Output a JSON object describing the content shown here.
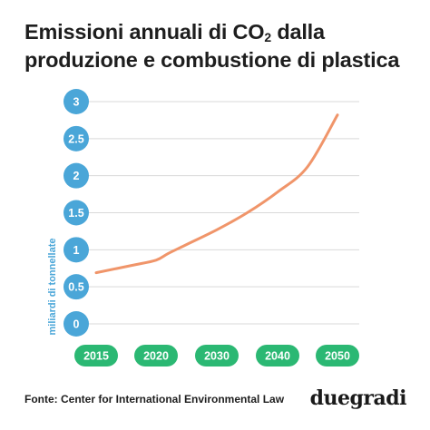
{
  "title": {
    "line1_prefix": "Emissioni annuali di CO",
    "line1_sub": "2",
    "line1_suffix": " dalla",
    "line2": "produzione e combustione di plastica"
  },
  "source": "Fonte: Center for International Environmental Law",
  "logo": "duegradi",
  "chart_data": {
    "type": "line",
    "ylabel": "miliardi di tonnellate",
    "yticks": [
      "0",
      "0.5",
      "1",
      "1.5",
      "2",
      "2.5",
      "3"
    ],
    "ylim": [
      0,
      3
    ],
    "x_categories": [
      "2015",
      "2020",
      "2030",
      "2040",
      "2050"
    ],
    "series": [
      {
        "color": "#f0956a",
        "x": [
          2015,
          2018,
          2020,
          2022,
          2025,
          2030,
          2035,
          2040,
          2045,
          2050
        ],
        "y": [
          0.69,
          0.79,
          0.86,
          0.95,
          1.07,
          1.27,
          1.5,
          1.78,
          2.12,
          2.82
        ]
      }
    ],
    "grid": true,
    "tick_color": "#4aa6d8",
    "xtick_color": "#2bb873"
  }
}
